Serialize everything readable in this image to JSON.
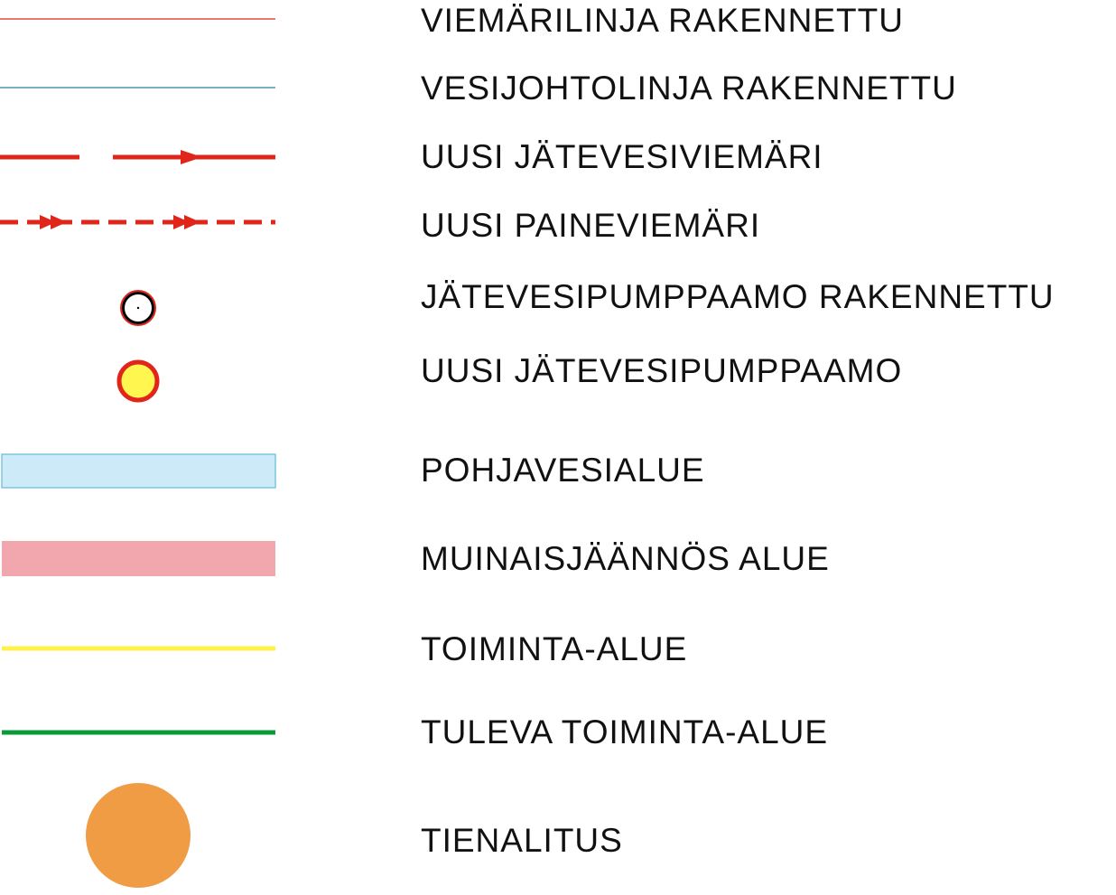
{
  "legend": {
    "items": [
      "VIEMÄRILINJA RAKENNETTU",
      "VESIJOHTOLINJA RAKENNETTU",
      "UUSI JÄTEVESIVIEMÄRI",
      "UUSI PAINEVIEMÄRI",
      "JÄTEVESIPUMPPAAMO RAKENNETTU",
      "UUSI JÄTEVESIPUMPPAAMO",
      "POHJAVESIALUE",
      "MUINAISJÄÄNNÖS ALUE",
      "TOIMINTA-ALUE",
      "TULEVA TOIMINTA-ALUE",
      "TIENALITUS"
    ]
  }
}
